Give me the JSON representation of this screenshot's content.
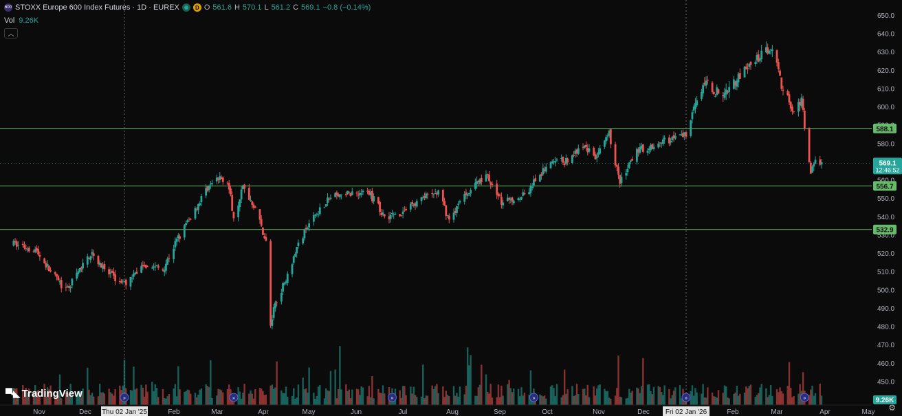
{
  "header": {
    "title": "STOXX Europe 600 Index Futures · 1D · EUREX",
    "interval_badge": "D",
    "ohlc": [
      {
        "k": "O",
        "v": "561.6"
      },
      {
        "k": "H",
        "v": "570.1"
      },
      {
        "k": "L",
        "v": "561.2"
      },
      {
        "k": "C",
        "v": "569.1"
      }
    ],
    "change": "−0.8 (−0.14%)"
  },
  "volume": {
    "label": "Vol",
    "value": "9.26K",
    "badge": "9.26K"
  },
  "brand": {
    "name": "TradingView"
  },
  "price_tag": {
    "value": "569.1",
    "countdown": "12:46:52"
  },
  "levels": [
    {
      "value": 588.1,
      "label": "588.1"
    },
    {
      "value": 556.7,
      "label": "556.7"
    },
    {
      "value": 532.9,
      "label": "532.9"
    }
  ],
  "crosshair_labels": [
    "Thu 02 Jan '25",
    "Fri 02 Jan '26"
  ],
  "colors": {
    "up": "#26a69a",
    "down": "#ef5350",
    "level": "#66bb6a",
    "background": "#0b0b0b"
  },
  "chart_data": {
    "type": "candlestick",
    "y_ticks": [
      450,
      460,
      470,
      480,
      490,
      500,
      510,
      520,
      530,
      540,
      550,
      560,
      570,
      580,
      590,
      600,
      610,
      620,
      630,
      640,
      650
    ],
    "y_tick_labels": [
      "450.0",
      "460.0",
      "470.0",
      "480.0",
      "490.0",
      "500.0",
      "510.0",
      "520.0",
      "530.0",
      "540.0",
      "550.0",
      "560.0",
      "570.0",
      "580.0",
      "590.0",
      "600.0",
      "610.0",
      "620.0",
      "630.0",
      "640.0",
      "650.0"
    ],
    "ylim": [
      446,
      656
    ],
    "x_ticks": [
      "Nov",
      "Dec",
      "Thu 02 Jan '25",
      "Feb",
      "Mar",
      "Apr",
      "May",
      "Jun",
      "Jul",
      "Aug",
      "Sep",
      "Oct",
      "Nov",
      "Dec",
      "Fri 02 Jan '26",
      "Feb",
      "Mar",
      "Apr",
      "May"
    ],
    "close_path": [
      [
        "2024-10-22",
        525
      ],
      [
        "2024-11-05",
        522
      ],
      [
        "2024-11-15",
        510
      ],
      [
        "2024-11-25",
        499
      ],
      [
        "2024-12-05",
        512
      ],
      [
        "2024-12-12",
        521
      ],
      [
        "2024-12-20",
        510
      ],
      [
        "2025-01-02",
        503
      ],
      [
        "2025-01-15",
        514
      ],
      [
        "2025-01-27",
        511
      ],
      [
        "2025-02-05",
        527
      ],
      [
        "2025-02-15",
        541
      ],
      [
        "2025-02-25",
        556
      ],
      [
        "2025-03-05",
        561
      ],
      [
        "2025-03-10",
        560
      ],
      [
        "2025-03-14",
        540
      ],
      [
        "2025-03-20",
        556
      ],
      [
        "2025-03-28",
        545
      ],
      [
        "2025-04-04",
        526
      ],
      [
        "2025-04-07",
        480
      ],
      [
        "2025-04-10",
        493
      ],
      [
        "2025-04-15",
        502
      ],
      [
        "2025-04-25",
        525
      ],
      [
        "2025-05-05",
        540
      ],
      [
        "2025-05-15",
        550
      ],
      [
        "2025-05-30",
        553
      ],
      [
        "2025-06-10",
        553
      ],
      [
        "2025-06-20",
        540
      ],
      [
        "2025-07-01",
        542
      ],
      [
        "2025-07-15",
        550
      ],
      [
        "2025-07-25",
        553
      ],
      [
        "2025-08-01",
        538
      ],
      [
        "2025-08-12",
        553
      ],
      [
        "2025-08-25",
        563
      ],
      [
        "2025-09-05",
        547
      ],
      [
        "2025-09-20",
        553
      ],
      [
        "2025-10-05",
        569
      ],
      [
        "2025-10-15",
        570
      ],
      [
        "2025-10-28",
        578
      ],
      [
        "2025-11-05",
        572
      ],
      [
        "2025-11-13",
        585
      ],
      [
        "2025-11-20",
        558
      ],
      [
        "2025-12-01",
        576
      ],
      [
        "2025-12-15",
        580
      ],
      [
        "2026-01-02",
        585
      ],
      [
        "2026-01-08",
        604
      ],
      [
        "2026-01-15",
        612
      ],
      [
        "2026-01-25",
        606
      ],
      [
        "2026-02-05",
        616
      ],
      [
        "2026-02-15",
        624
      ],
      [
        "2026-02-27",
        634
      ],
      [
        "2026-03-05",
        612
      ],
      [
        "2026-03-12",
        598
      ],
      [
        "2026-03-18",
        603
      ],
      [
        "2026-03-24",
        562
      ],
      [
        "2026-03-27",
        573
      ],
      [
        "2026-03-31",
        569
      ]
    ]
  }
}
